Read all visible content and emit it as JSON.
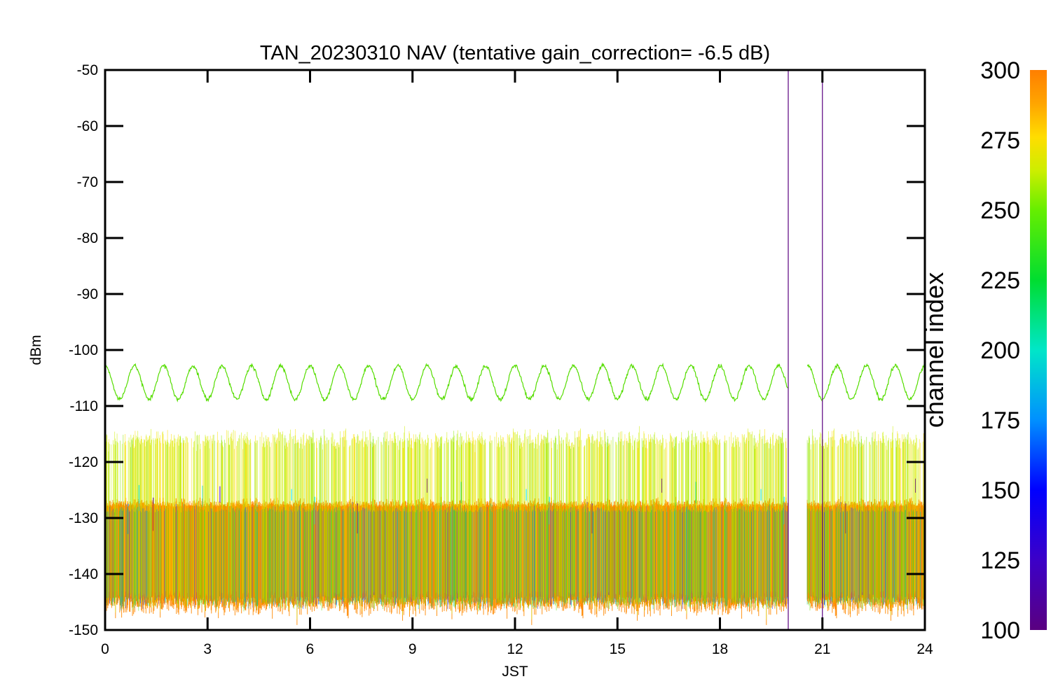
{
  "chart_data": {
    "type": "line",
    "title": "TAN_20230310 NAV (tentative gain_correction= -6.5 dB)",
    "xlabel": "JST",
    "ylabel": "dBm",
    "xlim": [
      0,
      24
    ],
    "ylim": [
      -150,
      -50
    ],
    "x_ticks": [
      0,
      3,
      6,
      9,
      12,
      15,
      18,
      21,
      24
    ],
    "x_tick_labels": [
      "0",
      "3",
      "6",
      "9",
      "12",
      "15",
      "18",
      "21",
      "24"
    ],
    "y_ticks": [
      -50,
      -60,
      -70,
      -80,
      -90,
      -100,
      -110,
      -120,
      -130,
      -140,
      -150
    ],
    "y_tick_labels": [
      "-50",
      "-60",
      "-70",
      "-80",
      "-90",
      "-100",
      "-110",
      "-120",
      "-130",
      "-140",
      "-150"
    ],
    "grid": false,
    "colorbar": {
      "label": "channel index",
      "range": [
        100,
        300
      ],
      "ticks": [
        100,
        125,
        150,
        175,
        200,
        225,
        250,
        275,
        300
      ],
      "tick_labels": [
        "100",
        "125",
        "150",
        "175",
        "200",
        "225",
        "250",
        "275",
        "300"
      ],
      "colormap": "rainbow",
      "colors": [
        "#5a0080",
        "#3c00c8",
        "#0000ff",
        "#0080ff",
        "#00e6e6",
        "#00d070",
        "#00dd00",
        "#66ee00",
        "#ccee00",
        "#ffdd00",
        "#ffa500",
        "#ff7f00"
      ]
    },
    "series": [
      {
        "channel": 245,
        "color": "#55dd00",
        "shape": "sinusoid",
        "mean": -105.8,
        "amplitude": 3.0,
        "cycles": 28
      },
      {
        "channel": 290,
        "color": "#ff8800",
        "shape": "noise band",
        "center": -135,
        "upper": -115,
        "lower": -145
      }
    ],
    "data_gap": {
      "start": 20.0,
      "end": 20.55
    },
    "vertical_lines": [
      {
        "x": 20.0,
        "color": "#5a0080"
      },
      {
        "x": 21.0,
        "color": "#5a0080"
      }
    ]
  }
}
